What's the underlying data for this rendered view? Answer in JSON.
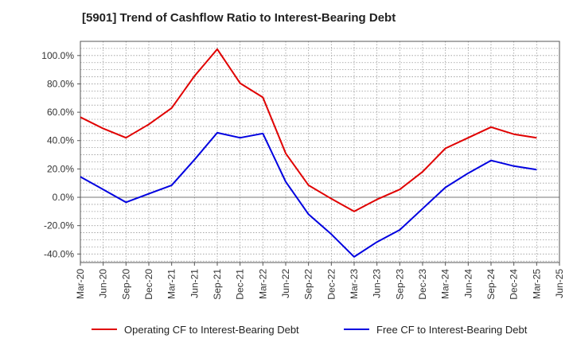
{
  "chart_data": {
    "type": "line",
    "title": "[5901]  Trend of Cashflow Ratio to Interest-Bearing Debt",
    "xlabel": "",
    "ylabel": "",
    "x": [
      "Mar-20",
      "Jun-20",
      "Sep-20",
      "Dec-20",
      "Mar-21",
      "Jun-21",
      "Sep-21",
      "Dec-21",
      "Mar-22",
      "Jun-22",
      "Sep-22",
      "Dec-22",
      "Mar-23",
      "Jun-23",
      "Sep-23",
      "Dec-23",
      "Mar-24",
      "Jun-24",
      "Sep-24",
      "Dec-24",
      "Mar-25",
      "Jun-25"
    ],
    "ylim": [
      -46,
      110
    ],
    "yticks": [
      -40,
      -20,
      0,
      20,
      40,
      60,
      80,
      100
    ],
    "ytick_labels": [
      "-40.0%",
      "-20.0%",
      "0.0%",
      "20.0%",
      "40.0%",
      "60.0%",
      "80.0%",
      "100.0%"
    ],
    "grid": true,
    "legend_position": "bottom",
    "series": [
      {
        "name": "Operating CF to Interest-Bearing Debt",
        "color": "#e00000",
        "values": [
          56.5,
          48.5,
          42.0,
          51.5,
          63.0,
          85.5,
          104.5,
          80.5,
          70.5,
          31.0,
          8.5,
          -1.0,
          -10.0,
          -1.5,
          5.5,
          18.0,
          34.5,
          42.0,
          49.5,
          44.5,
          42.0,
          null
        ]
      },
      {
        "name": "Free CF to Interest-Bearing Debt",
        "color": "#0000e0",
        "values": [
          14.5,
          5.5,
          -3.5,
          2.5,
          8.5,
          26.5,
          45.5,
          42.0,
          45.0,
          11.0,
          -12.0,
          -26.0,
          -42.0,
          -31.5,
          -23.0,
          -8.0,
          7.0,
          17.0,
          26.0,
          22.0,
          19.5,
          null
        ]
      }
    ]
  }
}
